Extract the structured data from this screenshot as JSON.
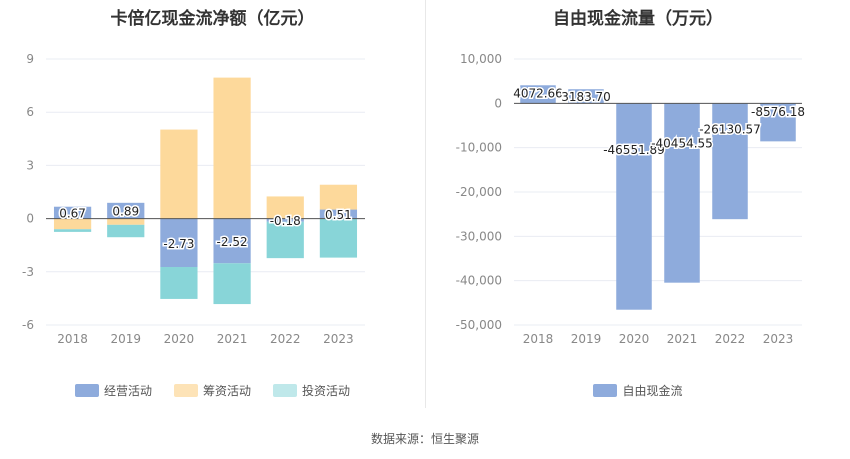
{
  "source_text": "数据来源：恒生聚源",
  "chart_data": [
    {
      "type": "bar",
      "stacked": true,
      "title": "卡倍亿现金流净额（亿元）",
      "categories": [
        "2018",
        "2019",
        "2020",
        "2021",
        "2022",
        "2023"
      ],
      "ylim": [
        -6,
        9
      ],
      "yticks": [
        -6,
        -3,
        0,
        3,
        6,
        9
      ],
      "ytick_labels": [
        "-6",
        "-3",
        "0",
        "3",
        "6",
        "9"
      ],
      "grid": true,
      "legend_position": "bottom",
      "series": [
        {
          "name": "经营活动",
          "color": "#8eabdc",
          "values": [
            0.67,
            0.89,
            -2.73,
            -2.52,
            -0.18,
            0.51
          ]
        },
        {
          "name": "筹资活动",
          "color": "#fdd99b",
          "values": [
            -0.6,
            -0.35,
            5.02,
            7.95,
            1.25,
            1.4
          ]
        },
        {
          "name": "投资活动",
          "color": "#88d5d8",
          "values": [
            -0.15,
            -0.7,
            -1.8,
            -2.3,
            -2.05,
            -2.2
          ]
        }
      ],
      "data_labels": [
        "0.67",
        "0.89",
        "-2.73",
        "-2.52",
        "-0.18",
        "0.51"
      ]
    },
    {
      "type": "bar",
      "title": "自由现金流量（万元）",
      "categories": [
        "2018",
        "2019",
        "2020",
        "2021",
        "2022",
        "2023"
      ],
      "ylim": [
        -50000,
        10000
      ],
      "yticks": [
        -50000,
        -40000,
        -30000,
        -20000,
        -10000,
        0,
        10000
      ],
      "ytick_labels": [
        "-50,000",
        "-40,000",
        "-30,000",
        "-20,000",
        "-10,000",
        "0",
        "10,000"
      ],
      "grid": true,
      "legend_position": "bottom",
      "series": [
        {
          "name": "自由现金流",
          "color": "#8eabdc",
          "values": [
            4072.66,
            3183.7,
            -46551.89,
            -40454.55,
            -26130.57,
            -8576.18
          ]
        }
      ],
      "data_labels": [
        "4072.66",
        "3183.70",
        "-46551.89",
        "-40454.55",
        "-26130.57",
        "-8576.18"
      ]
    }
  ]
}
